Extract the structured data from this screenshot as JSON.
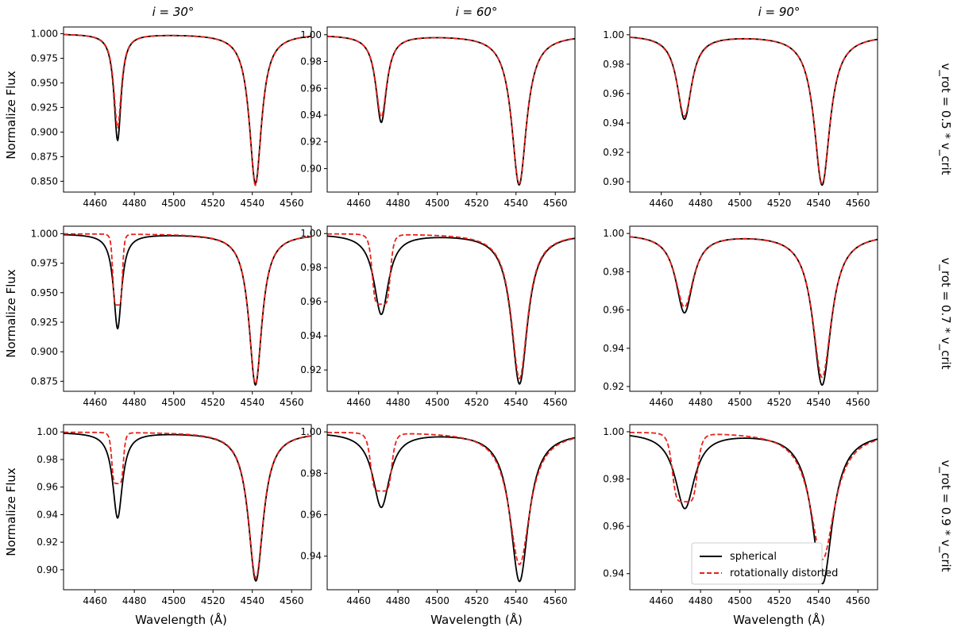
{
  "figure": {
    "column_titles": [
      "i = 30°",
      "i = 60°",
      "i = 90°"
    ],
    "row_labels": [
      "v_rot = 0.5 * v_crit",
      "v_rot = 0.7 * v_crit",
      "v_rot = 0.9 * v_crit"
    ],
    "ylabel": "Normalize Flux",
    "xlabel": "Wavelength (Å)",
    "legend": {
      "entries": [
        "spherical",
        "rotationally distorted"
      ],
      "location": "lower-left of bottom-right panel"
    },
    "colors": {
      "spherical": "#000000",
      "distorted": "#e8221b"
    }
  },
  "chart_data": [
    {
      "type": "line",
      "title": "i = 30°",
      "row": 0,
      "col": 0,
      "xlim": [
        4444,
        4570
      ],
      "ylim": [
        0.839,
        1.0068
      ],
      "xticks": [
        4460,
        4480,
        4500,
        4520,
        4540,
        4560
      ],
      "yticks": [
        0.85,
        0.875,
        0.9,
        0.925,
        0.95,
        0.975,
        1.0
      ],
      "ytick_labels": [
        "0.850",
        "0.875",
        "0.900",
        "0.925",
        "0.950",
        "0.975",
        "1.000"
      ],
      "series": [
        {
          "name": "spherical",
          "lines": [
            {
              "center": 4471.5,
              "depth": 0.108,
              "width": 2.2
            },
            {
              "center": 4541.6,
              "depth": 0.152,
              "width": 3.8
            }
          ]
        },
        {
          "name": "rotationally distorted",
          "lines": [
            {
              "center": 4471.5,
              "depth": 0.095,
              "width": 2.3
            },
            {
              "center": 4541.6,
              "depth": 0.154,
              "width": 3.8
            }
          ]
        }
      ]
    },
    {
      "type": "line",
      "title": "i = 60°",
      "row": 0,
      "col": 1,
      "xlim": [
        4444,
        4570
      ],
      "ylim": [
        0.8825,
        1.0058
      ],
      "xticks": [
        4460,
        4480,
        4500,
        4520,
        4540,
        4560
      ],
      "yticks": [
        0.9,
        0.92,
        0.94,
        0.96,
        0.98,
        1.0
      ],
      "ytick_labels": [
        "0.90",
        "0.92",
        "0.94",
        "0.96",
        "0.98",
        "1.00"
      ],
      "series": [
        {
          "name": "spherical",
          "lines": [
            {
              "center": 4471.5,
              "depth": 0.065,
              "width": 3.3
            },
            {
              "center": 4541.6,
              "depth": 0.112,
              "width": 4.6
            }
          ]
        },
        {
          "name": "rotationally distorted",
          "lines": [
            {
              "center": 4471.5,
              "depth": 0.061,
              "width": 3.4
            },
            {
              "center": 4541.6,
              "depth": 0.111,
              "width": 4.6
            }
          ]
        }
      ]
    },
    {
      "type": "line",
      "title": "i = 90°",
      "row": 0,
      "col": 2,
      "xlim": [
        4444,
        4570
      ],
      "ylim": [
        0.893,
        1.0053
      ],
      "xticks": [
        4460,
        4480,
        4500,
        4520,
        4540,
        4560
      ],
      "yticks": [
        0.9,
        0.92,
        0.94,
        0.96,
        0.98,
        1.0
      ],
      "ytick_labels": [
        "0.90",
        "0.92",
        "0.94",
        "0.96",
        "0.98",
        "1.00"
      ],
      "series": [
        {
          "name": "spherical",
          "lines": [
            {
              "center": 4471.8,
              "depth": 0.057,
              "width": 4.4
            },
            {
              "center": 4541.8,
              "depth": 0.102,
              "width": 4.9
            }
          ]
        },
        {
          "name": "rotationally distorted",
          "lines": [
            {
              "center": 4471.8,
              "depth": 0.055,
              "width": 4.6
            },
            {
              "center": 4541.8,
              "depth": 0.101,
              "width": 4.9
            }
          ]
        }
      ]
    },
    {
      "type": "line",
      "title": "",
      "row": 1,
      "col": 0,
      "xlim": [
        4444,
        4570
      ],
      "ylim": [
        0.8665,
        1.0063
      ],
      "xticks": [
        4460,
        4480,
        4500,
        4520,
        4540,
        4560
      ],
      "yticks": [
        0.875,
        0.9,
        0.925,
        0.95,
        0.975,
        1.0
      ],
      "ytick_labels": [
        "0.875",
        "0.900",
        "0.925",
        "0.950",
        "0.975",
        "1.000"
      ],
      "series": [
        {
          "name": "spherical",
          "lines": [
            {
              "center": 4471.5,
              "depth": 0.08,
              "width": 2.5
            },
            {
              "center": 4541.6,
              "depth": 0.128,
              "width": 4.0
            }
          ]
        },
        {
          "name": "rotationally distorted",
          "lines": [
            {
              "center": 4471.5,
              "depth": 0.06,
              "width": 2.6,
              "flat": true
            },
            {
              "center": 4541.6,
              "depth": 0.127,
              "width": 4.0
            }
          ]
        }
      ]
    },
    {
      "type": "line",
      "title": "",
      "row": 1,
      "col": 1,
      "xlim": [
        4444,
        4570
      ],
      "ylim": [
        0.9075,
        1.0043
      ],
      "xticks": [
        4460,
        4480,
        4500,
        4520,
        4540,
        4560
      ],
      "yticks": [
        0.92,
        0.94,
        0.96,
        0.98,
        1.0
      ],
      "ytick_labels": [
        "0.92",
        "0.94",
        "0.96",
        "0.98",
        "1.00"
      ],
      "series": [
        {
          "name": "spherical",
          "lines": [
            {
              "center": 4471.5,
              "depth": 0.047,
              "width": 4.5
            },
            {
              "center": 4541.8,
              "depth": 0.088,
              "width": 5.0
            }
          ]
        },
        {
          "name": "rotationally distorted",
          "lines": [
            {
              "center": 4471.5,
              "depth": 0.041,
              "width": 4.8,
              "flat": true
            },
            {
              "center": 4541.8,
              "depth": 0.085,
              "width": 5.0
            }
          ]
        }
      ]
    },
    {
      "type": "line",
      "title": "",
      "row": 1,
      "col": 2,
      "xlim": [
        4444,
        4570
      ],
      "ylim": [
        0.9175,
        1.0038
      ],
      "xticks": [
        4460,
        4480,
        4500,
        4520,
        4540,
        4560
      ],
      "yticks": [
        0.92,
        0.94,
        0.96,
        0.98,
        1.0
      ],
      "ytick_labels": [
        "0.92",
        "0.94",
        "0.96",
        "0.98",
        "1.00"
      ],
      "series": [
        {
          "name": "spherical",
          "lines": [
            {
              "center": 4471.8,
              "depth": 0.041,
              "width": 5.3
            },
            {
              "center": 4541.8,
              "depth": 0.079,
              "width": 5.6
            }
          ]
        },
        {
          "name": "rotationally distorted",
          "lines": [
            {
              "center": 4471.8,
              "depth": 0.038,
              "width": 5.6
            },
            {
              "center": 4541.8,
              "depth": 0.075,
              "width": 5.8
            }
          ]
        }
      ]
    },
    {
      "type": "line",
      "title": "",
      "row": 2,
      "col": 0,
      "xlim": [
        4444,
        4570
      ],
      "ylim": [
        0.8855,
        1.0053
      ],
      "xticks": [
        4460,
        4480,
        4500,
        4520,
        4540,
        4560
      ],
      "yticks": [
        0.9,
        0.92,
        0.94,
        0.96,
        0.98,
        1.0
      ],
      "ytick_labels": [
        "0.90",
        "0.92",
        "0.94",
        "0.96",
        "0.98",
        "1.00"
      ],
      "series": [
        {
          "name": "spherical",
          "lines": [
            {
              "center": 4471.5,
              "depth": 0.062,
              "width": 3.0
            },
            {
              "center": 4541.8,
              "depth": 0.108,
              "width": 4.6
            }
          ]
        },
        {
          "name": "rotationally distorted",
          "lines": [
            {
              "center": 4471.5,
              "depth": 0.037,
              "width": 3.1,
              "flat": true
            },
            {
              "center": 4541.8,
              "depth": 0.106,
              "width": 4.6
            }
          ]
        }
      ]
    },
    {
      "type": "line",
      "title": "",
      "row": 2,
      "col": 1,
      "xlim": [
        4444,
        4570
      ],
      "ylim": [
        0.9238,
        1.0035
      ],
      "xticks": [
        4460,
        4480,
        4500,
        4520,
        4540,
        4560
      ],
      "yticks": [
        0.94,
        0.96,
        0.98,
        1.0
      ],
      "ytick_labels": [
        "0.94",
        "0.96",
        "0.98",
        "1.00"
      ],
      "series": [
        {
          "name": "spherical",
          "lines": [
            {
              "center": 4471.5,
              "depth": 0.036,
              "width": 5.2
            },
            {
              "center": 4541.8,
              "depth": 0.072,
              "width": 5.6
            }
          ]
        },
        {
          "name": "rotationally distorted",
          "lines": [
            {
              "center": 4471.5,
              "depth": 0.028,
              "width": 5.6,
              "flat": true
            },
            {
              "center": 4541.8,
              "depth": 0.064,
              "width": 6.4
            }
          ]
        }
      ]
    },
    {
      "type": "line",
      "title": "",
      "row": 2,
      "col": 2,
      "xlim": [
        4444,
        4570
      ],
      "ylim": [
        0.9332,
        1.003
      ],
      "xticks": [
        4460,
        4480,
        4500,
        4520,
        4540,
        4560
      ],
      "yticks": [
        0.94,
        0.96,
        0.98,
        1.0
      ],
      "ytick_labels": [
        "0.94",
        "0.96",
        "0.98",
        "1.00"
      ],
      "series": [
        {
          "name": "spherical",
          "lines": [
            {
              "center": 4472.0,
              "depth": 0.032,
              "width": 6.0
            },
            {
              "center": 4542.0,
              "depth": 0.064,
              "width": 6.2
            }
          ]
        },
        {
          "name": "rotationally distorted",
          "lines": [
            {
              "center": 4472.0,
              "depth": 0.029,
              "width": 6.6,
              "flat": true
            },
            {
              "center": 4542.0,
              "depth": 0.054,
              "width": 7.4
            }
          ]
        }
      ]
    }
  ]
}
